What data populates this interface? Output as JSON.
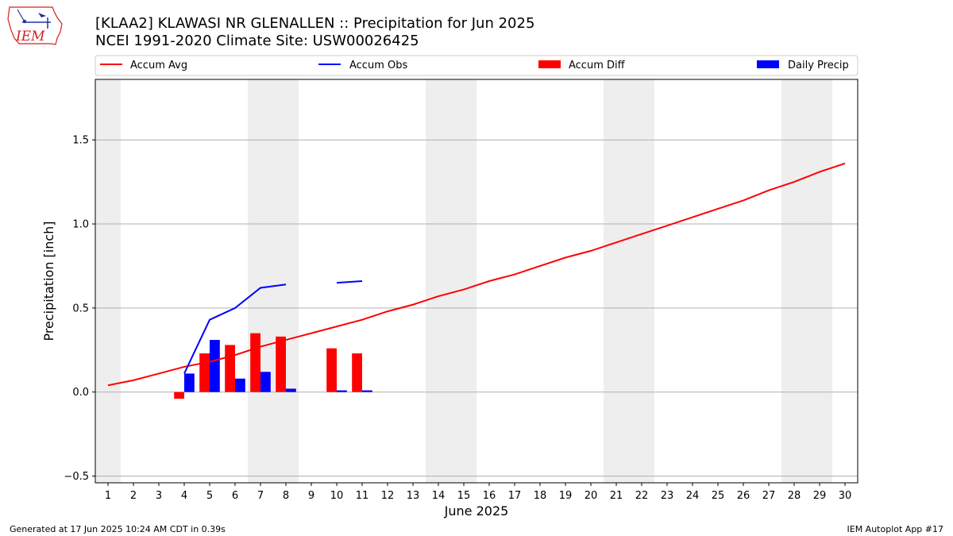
{
  "header": {
    "title_line1": "[KLAA2] KLAWASI NR GLENALLEN :: Precipitation for Jun 2025",
    "title_line2": "NCEI 1991-2020 Climate Site: USW00026425"
  },
  "logo": {
    "text": "IEM"
  },
  "footer": {
    "left": "Generated at 17 Jun 2025 10:24 AM CDT in 0.39s",
    "right": "IEM Autoplot App #17"
  },
  "legend": {
    "items": [
      {
        "label": "Accum Avg",
        "kind": "line",
        "color": "#ff0000"
      },
      {
        "label": "Accum Obs",
        "kind": "line",
        "color": "#0000ff"
      },
      {
        "label": "Accum Diff",
        "kind": "bar",
        "color": "#ff0000"
      },
      {
        "label": "Daily Precip",
        "kind": "bar",
        "color": "#0000ff"
      }
    ]
  },
  "colors": {
    "avg": "#ff0000",
    "obs": "#0000ff",
    "diff": "#ff0000",
    "daily": "#0000ff",
    "weekend": "#eeeeee",
    "grid": "#b0b0b0"
  },
  "chart_data": {
    "type": "bar",
    "xlabel": "June 2025",
    "ylabel": "Precipitation [inch]",
    "xlim": [
      0.5,
      30.5
    ],
    "ylim": [
      -0.54,
      1.86
    ],
    "x_ticks": [
      "1",
      "2",
      "3",
      "4",
      "5",
      "6",
      "7",
      "8",
      "9",
      "10",
      "11",
      "12",
      "13",
      "14",
      "15",
      "16",
      "17",
      "18",
      "19",
      "20",
      "21",
      "22",
      "23",
      "24",
      "25",
      "26",
      "27",
      "28",
      "29",
      "30"
    ],
    "y_ticks": [
      -0.5,
      0.0,
      0.5,
      1.0,
      1.5
    ],
    "y_tick_labels": [
      "−0.5",
      "0.0",
      "0.5",
      "1.0",
      "1.5"
    ],
    "grid": "horizontal",
    "legend_position": "top",
    "weekend_spans": [
      [
        0.5,
        1.5
      ],
      [
        6.5,
        8.5
      ],
      [
        13.5,
        15.5
      ],
      [
        20.5,
        22.5
      ],
      [
        27.5,
        29.5
      ]
    ],
    "days": [
      1,
      2,
      3,
      4,
      5,
      6,
      7,
      8,
      9,
      10,
      11,
      12,
      13,
      14,
      15,
      16,
      17,
      18,
      19,
      20,
      21,
      22,
      23,
      24,
      25,
      26,
      27,
      28,
      29,
      30
    ],
    "series": [
      {
        "name": "Accum Avg",
        "type": "line",
        "values": [
          0.04,
          0.07,
          0.11,
          0.15,
          0.18,
          0.22,
          0.27,
          0.31,
          0.35,
          0.39,
          0.43,
          0.48,
          0.52,
          0.57,
          0.61,
          0.66,
          0.7,
          0.75,
          0.8,
          0.84,
          0.89,
          0.94,
          0.99,
          1.04,
          1.09,
          1.14,
          1.2,
          1.25,
          1.31,
          1.36
        ]
      },
      {
        "name": "Accum Obs",
        "type": "line",
        "values": [
          null,
          null,
          null,
          0.11,
          0.43,
          0.5,
          0.62,
          0.64,
          null,
          0.65,
          0.66,
          null,
          null,
          null,
          null,
          null,
          null,
          null,
          null,
          null,
          null,
          null,
          null,
          null,
          null,
          null,
          null,
          null,
          null,
          null
        ]
      },
      {
        "name": "Accum Diff",
        "type": "bar",
        "values": [
          null,
          null,
          null,
          -0.04,
          0.23,
          0.28,
          0.35,
          0.33,
          null,
          0.26,
          0.23,
          null,
          null,
          null,
          null,
          null,
          null,
          null,
          null,
          null,
          null,
          null,
          null,
          null,
          null,
          null,
          null,
          null,
          null,
          null
        ]
      },
      {
        "name": "Daily Precip",
        "type": "bar",
        "values": [
          null,
          null,
          null,
          0.11,
          0.31,
          0.08,
          0.12,
          0.02,
          null,
          0.01,
          0.01,
          null,
          null,
          null,
          null,
          null,
          null,
          null,
          null,
          null,
          null,
          null,
          null,
          null,
          null,
          null,
          null,
          null,
          null,
          null
        ]
      }
    ]
  }
}
